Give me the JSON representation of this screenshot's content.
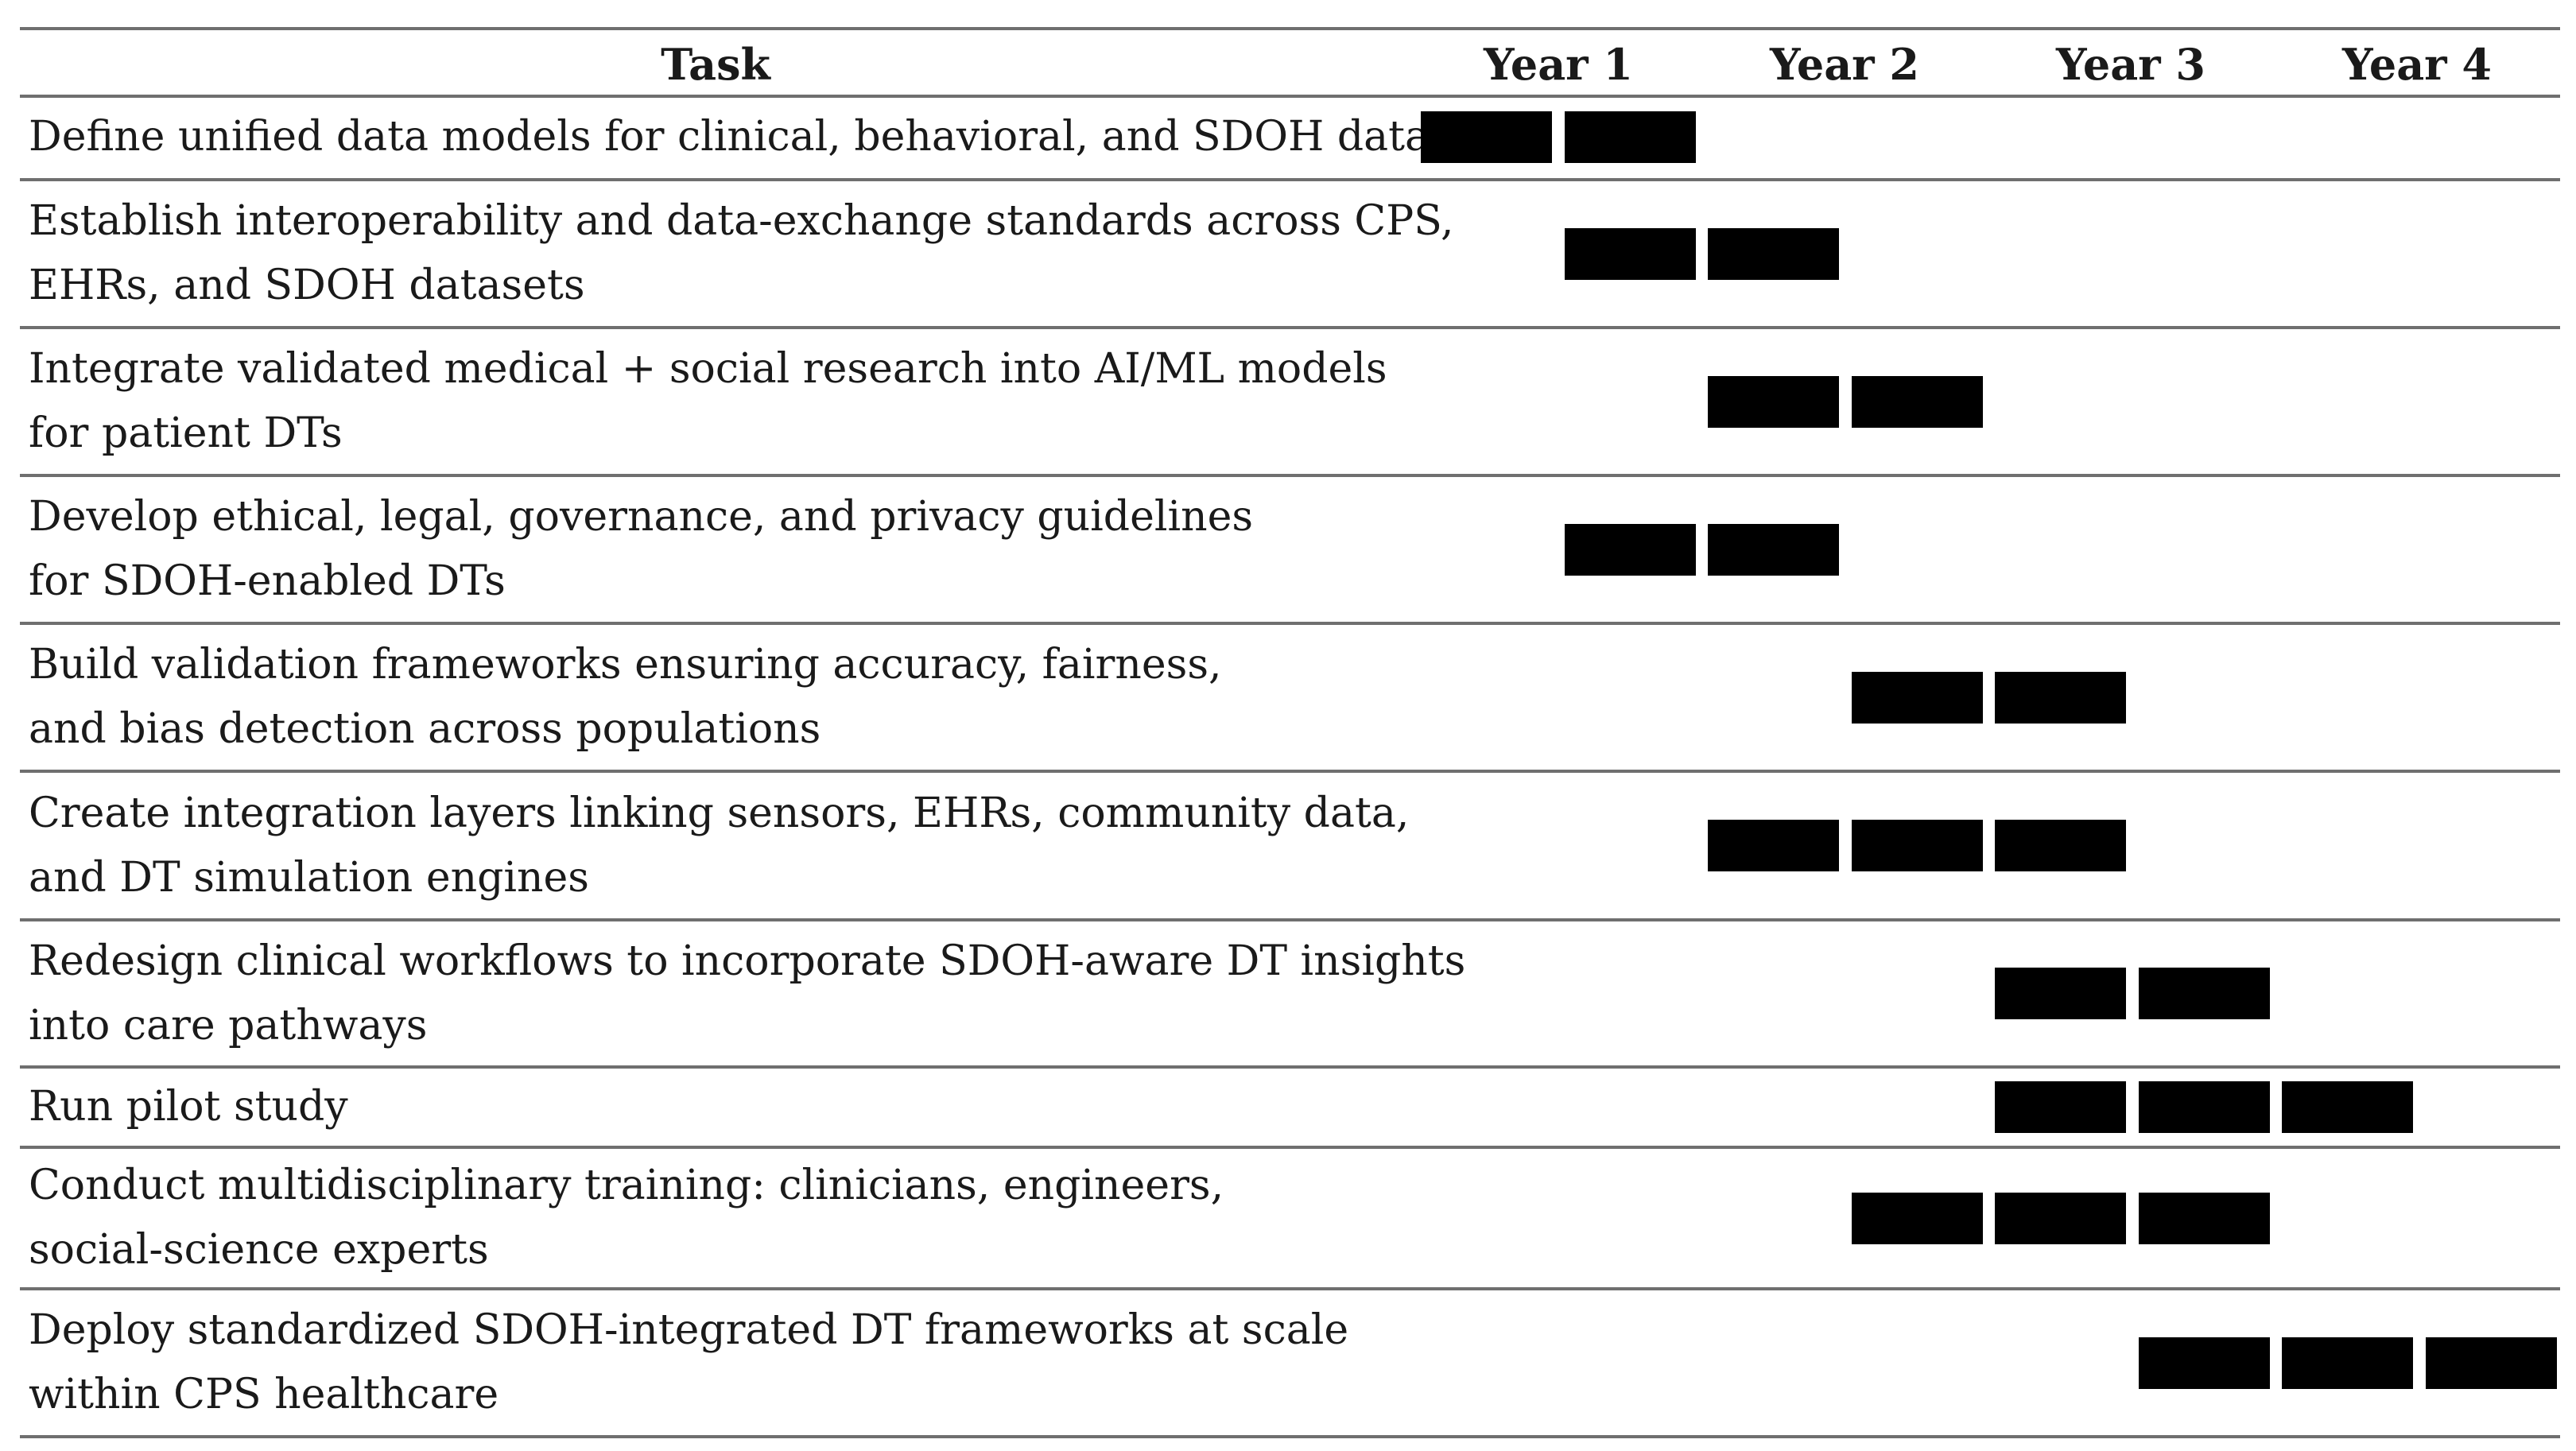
{
  "table": {
    "headers": {
      "task": "Task",
      "periods": [
        "Year 1",
        "Year 2",
        "Year 3",
        "Year 4"
      ]
    },
    "quarters_per_period": 2,
    "bar_color": "#000000",
    "rows": [
      {
        "lines": [
          "Define unified data models for clinical, behavioral, and SDOH data"
        ],
        "active_quarters": [
          1,
          2
        ]
      },
      {
        "lines": [
          "Establish interoperability and data-exchange standards across CPS,",
          "EHRs, and SDOH datasets"
        ],
        "active_quarters": [
          2,
          3
        ]
      },
      {
        "lines": [
          "Integrate validated medical + social research into AI/ML models",
          "for patient DTs"
        ],
        "active_quarters": [
          3,
          4
        ]
      },
      {
        "lines": [
          "Develop ethical, legal, governance, and privacy guidelines",
          "for SDOH-enabled DTs"
        ],
        "active_quarters": [
          2,
          3
        ]
      },
      {
        "lines": [
          "Build validation frameworks ensuring accuracy, fairness,",
          "and bias detection across populations"
        ],
        "active_quarters": [
          4,
          5
        ]
      },
      {
        "lines": [
          "Create integration layers linking sensors, EHRs, community data,",
          "and DT simulation engines"
        ],
        "active_quarters": [
          3,
          4,
          5
        ]
      },
      {
        "lines": [
          "Redesign clinical workflows to incorporate SDOH-aware DT insights",
          "into care pathways"
        ],
        "active_quarters": [
          5,
          6
        ]
      },
      {
        "lines": [
          "Run pilot study"
        ],
        "active_quarters": [
          5,
          6,
          7
        ]
      },
      {
        "lines": [
          "Conduct multidisciplinary training: clinicians, engineers,",
          "social-science experts"
        ],
        "active_quarters": [
          4,
          5,
          6
        ]
      },
      {
        "lines": [
          "Deploy standardized SDOH-integrated DT frameworks at scale",
          "within CPS healthcare"
        ],
        "active_quarters": [
          6,
          7,
          8
        ]
      }
    ]
  }
}
